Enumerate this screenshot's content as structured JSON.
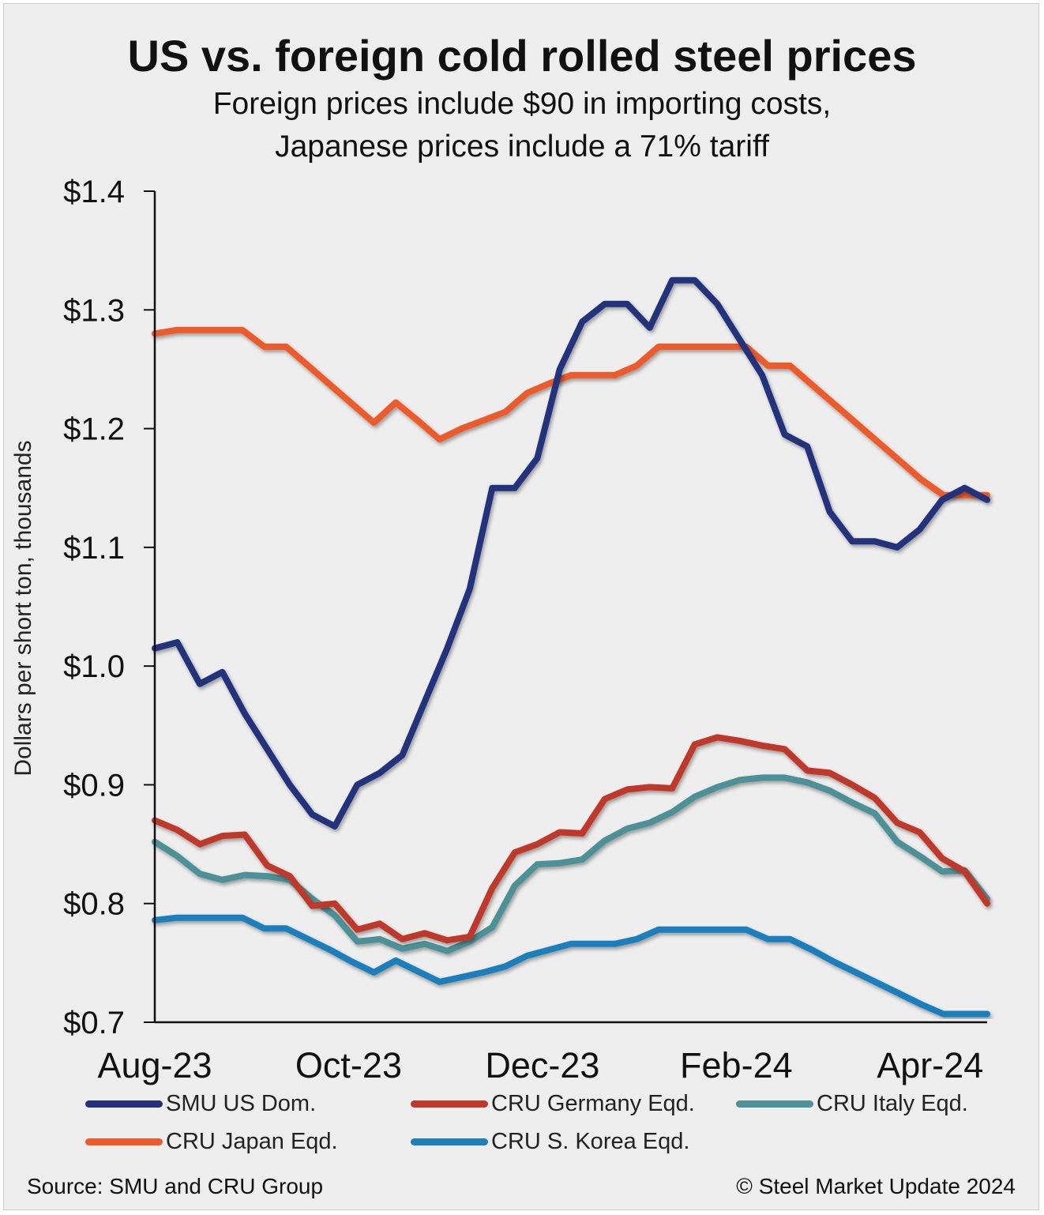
{
  "title": "US vs. foreign cold rolled steel prices",
  "subtitle_line1": "Foreign prices include $90 in importing costs,",
  "subtitle_line2": "Japanese prices include a 71% tariff",
  "source": "Source: SMU and CRU Group",
  "copyright": "© Steel Market Update 2024",
  "chart_data": {
    "type": "line",
    "title": "US vs. foreign cold rolled steel prices",
    "xlabel": "",
    "ylabel": "Dollars per short ton, thousands",
    "ylim": [
      0.7,
      1.4
    ],
    "y_ticks": [
      0.7,
      0.8,
      0.9,
      1.0,
      1.1,
      1.2,
      1.3,
      1.4
    ],
    "y_tick_labels": [
      "$0.7",
      "$0.8",
      "$0.9",
      "$1.0",
      "$1.1",
      "$1.2",
      "$1.3",
      "$1.4"
    ],
    "x_tick_labels": [
      "Aug-23",
      "Oct-23",
      "Dec-23",
      "Feb-24",
      "Apr-24"
    ],
    "x_tick_index": [
      0,
      8.5,
      17,
      25.5,
      34
    ],
    "xlim": [
      0,
      36.5
    ],
    "legend_position": "bottom",
    "series": [
      {
        "name": "SMU US Dom.",
        "color": "#24307c",
        "values": [
          1.015,
          1.02,
          0.985,
          0.995,
          0.96,
          0.93,
          0.9,
          0.875,
          0.865,
          0.9,
          0.91,
          0.925,
          0.97,
          1.015,
          1.065,
          1.15,
          1.15,
          1.175,
          1.25,
          1.29,
          1.305,
          1.305,
          1.285,
          1.325,
          1.325,
          1.305,
          1.275,
          1.245,
          1.195,
          1.185,
          1.13,
          1.105,
          1.105,
          1.1,
          1.115,
          1.14,
          1.15,
          1.14
        ]
      },
      {
        "name": "CRU Germany Eqd.",
        "color": "#c0392b",
        "values": [
          0.87,
          0.862,
          0.85,
          0.857,
          0.858,
          0.832,
          0.823,
          0.798,
          0.8,
          0.778,
          0.783,
          0.77,
          0.775,
          0.769,
          0.772,
          0.813,
          0.843,
          0.85,
          0.86,
          0.859,
          0.888,
          0.896,
          0.898,
          0.897,
          0.934,
          0.94,
          0.937,
          0.933,
          0.93,
          0.912,
          0.91,
          0.9,
          0.889,
          0.868,
          0.86,
          0.838,
          0.827,
          0.8
        ]
      },
      {
        "name": "CRU Italy Eqd.",
        "color": "#4e9198",
        "values": [
          0.852,
          0.84,
          0.825,
          0.82,
          0.824,
          0.823,
          0.82,
          0.804,
          0.79,
          0.768,
          0.77,
          0.762,
          0.766,
          0.76,
          0.768,
          0.78,
          0.815,
          0.833,
          0.834,
          0.837,
          0.853,
          0.863,
          0.868,
          0.877,
          0.89,
          0.898,
          0.904,
          0.906,
          0.906,
          0.902,
          0.895,
          0.885,
          0.876,
          0.852,
          0.84,
          0.827,
          0.828,
          0.804
        ]
      },
      {
        "name": "CRU Japan Eqd.",
        "color": "#ee5a2c",
        "values": [
          1.28,
          1.283,
          1.283,
          1.283,
          1.283,
          1.269,
          1.269,
          1.253,
          1.237,
          1.221,
          1.205,
          1.222,
          1.207,
          1.191,
          1.2,
          1.207,
          1.214,
          1.23,
          1.238,
          1.245,
          1.245,
          1.245,
          1.253,
          1.269,
          1.269,
          1.269,
          1.269,
          1.269,
          1.253,
          1.253,
          1.237,
          1.221,
          1.205,
          1.189,
          1.173,
          1.157,
          1.144,
          1.144,
          1.144
        ]
      },
      {
        "name": "CRU S. Korea Eqd.",
        "color": "#1f7fbd",
        "values": [
          0.786,
          0.788,
          0.788,
          0.788,
          0.788,
          0.779,
          0.779,
          0.77,
          0.761,
          0.751,
          0.742,
          0.752,
          0.743,
          0.734,
          0.738,
          0.742,
          0.747,
          0.756,
          0.761,
          0.766,
          0.766,
          0.766,
          0.77,
          0.778,
          0.778,
          0.778,
          0.778,
          0.778,
          0.77,
          0.77,
          0.761,
          0.751,
          0.742,
          0.733,
          0.724,
          0.715,
          0.707,
          0.707,
          0.707
        ]
      }
    ]
  }
}
